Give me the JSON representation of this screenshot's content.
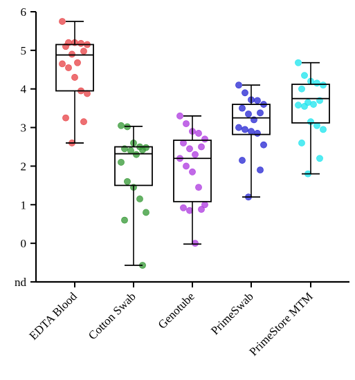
{
  "chart_data": {
    "type": "box",
    "title": "",
    "xlabel": "",
    "ylabel": "",
    "ylim": [
      -1,
      6
    ],
    "yticks": [
      "nd",
      "0",
      "1",
      "2",
      "3",
      "4",
      "5",
      "6"
    ],
    "grid": false,
    "categories": [
      "EDTA Blood",
      "Cotton Swab",
      "Genotube",
      "PrimeSwab",
      "PrimeStore MTM"
    ],
    "groups": [
      {
        "category": "EDTA Blood",
        "color": "#e8474a",
        "whisker_low": 2.6,
        "q1": 3.95,
        "median": 4.88,
        "q3": 5.15,
        "whisker_high": 5.75,
        "points": [
          5.75,
          5.2,
          5.2,
          5.18,
          5.15,
          5.1,
          4.98,
          4.9,
          4.68,
          4.65,
          4.55,
          4.3,
          3.95,
          3.88,
          3.25,
          3.15,
          2.6
        ]
      },
      {
        "category": "Cotton Swab",
        "color": "#3a9b3a",
        "whisker_low": -0.57,
        "q1": 1.5,
        "median": 2.32,
        "q3": 2.5,
        "whisker_high": 3.03,
        "points": [
          3.05,
          3.02,
          2.6,
          2.5,
          2.48,
          2.45,
          2.42,
          2.4,
          2.3,
          2.1,
          1.6,
          1.45,
          1.15,
          0.8,
          0.6,
          -0.57
        ]
      },
      {
        "category": "Genotube",
        "color": "#b03fe0",
        "whisker_low": -0.02,
        "q1": 1.08,
        "median": 2.2,
        "q3": 2.67,
        "whisker_high": 3.3,
        "points": [
          3.3,
          3.1,
          2.9,
          2.85,
          2.7,
          2.6,
          2.5,
          2.45,
          2.3,
          2.2,
          2.0,
          1.85,
          1.45,
          1.0,
          0.92,
          0.88,
          0.85,
          0.0
        ]
      },
      {
        "category": "PrimeSwab",
        "color": "#2b2bd4",
        "whisker_low": 1.2,
        "q1": 2.82,
        "median": 3.25,
        "q3": 3.6,
        "whisker_high": 4.1,
        "points": [
          4.1,
          3.9,
          3.72,
          3.7,
          3.6,
          3.5,
          3.38,
          3.35,
          3.2,
          3.0,
          2.95,
          2.9,
          2.85,
          2.55,
          2.15,
          1.9,
          1.2
        ]
      },
      {
        "category": "PrimeStore MTM",
        "color": "#22e6ee",
        "whisker_low": 1.8,
        "q1": 3.12,
        "median": 3.75,
        "q3": 4.12,
        "whisker_high": 4.68,
        "points": [
          4.68,
          4.35,
          4.2,
          4.15,
          4.1,
          4.0,
          3.7,
          3.65,
          3.6,
          3.58,
          3.55,
          3.15,
          3.05,
          2.95,
          2.6,
          2.2,
          1.8
        ]
      }
    ]
  }
}
